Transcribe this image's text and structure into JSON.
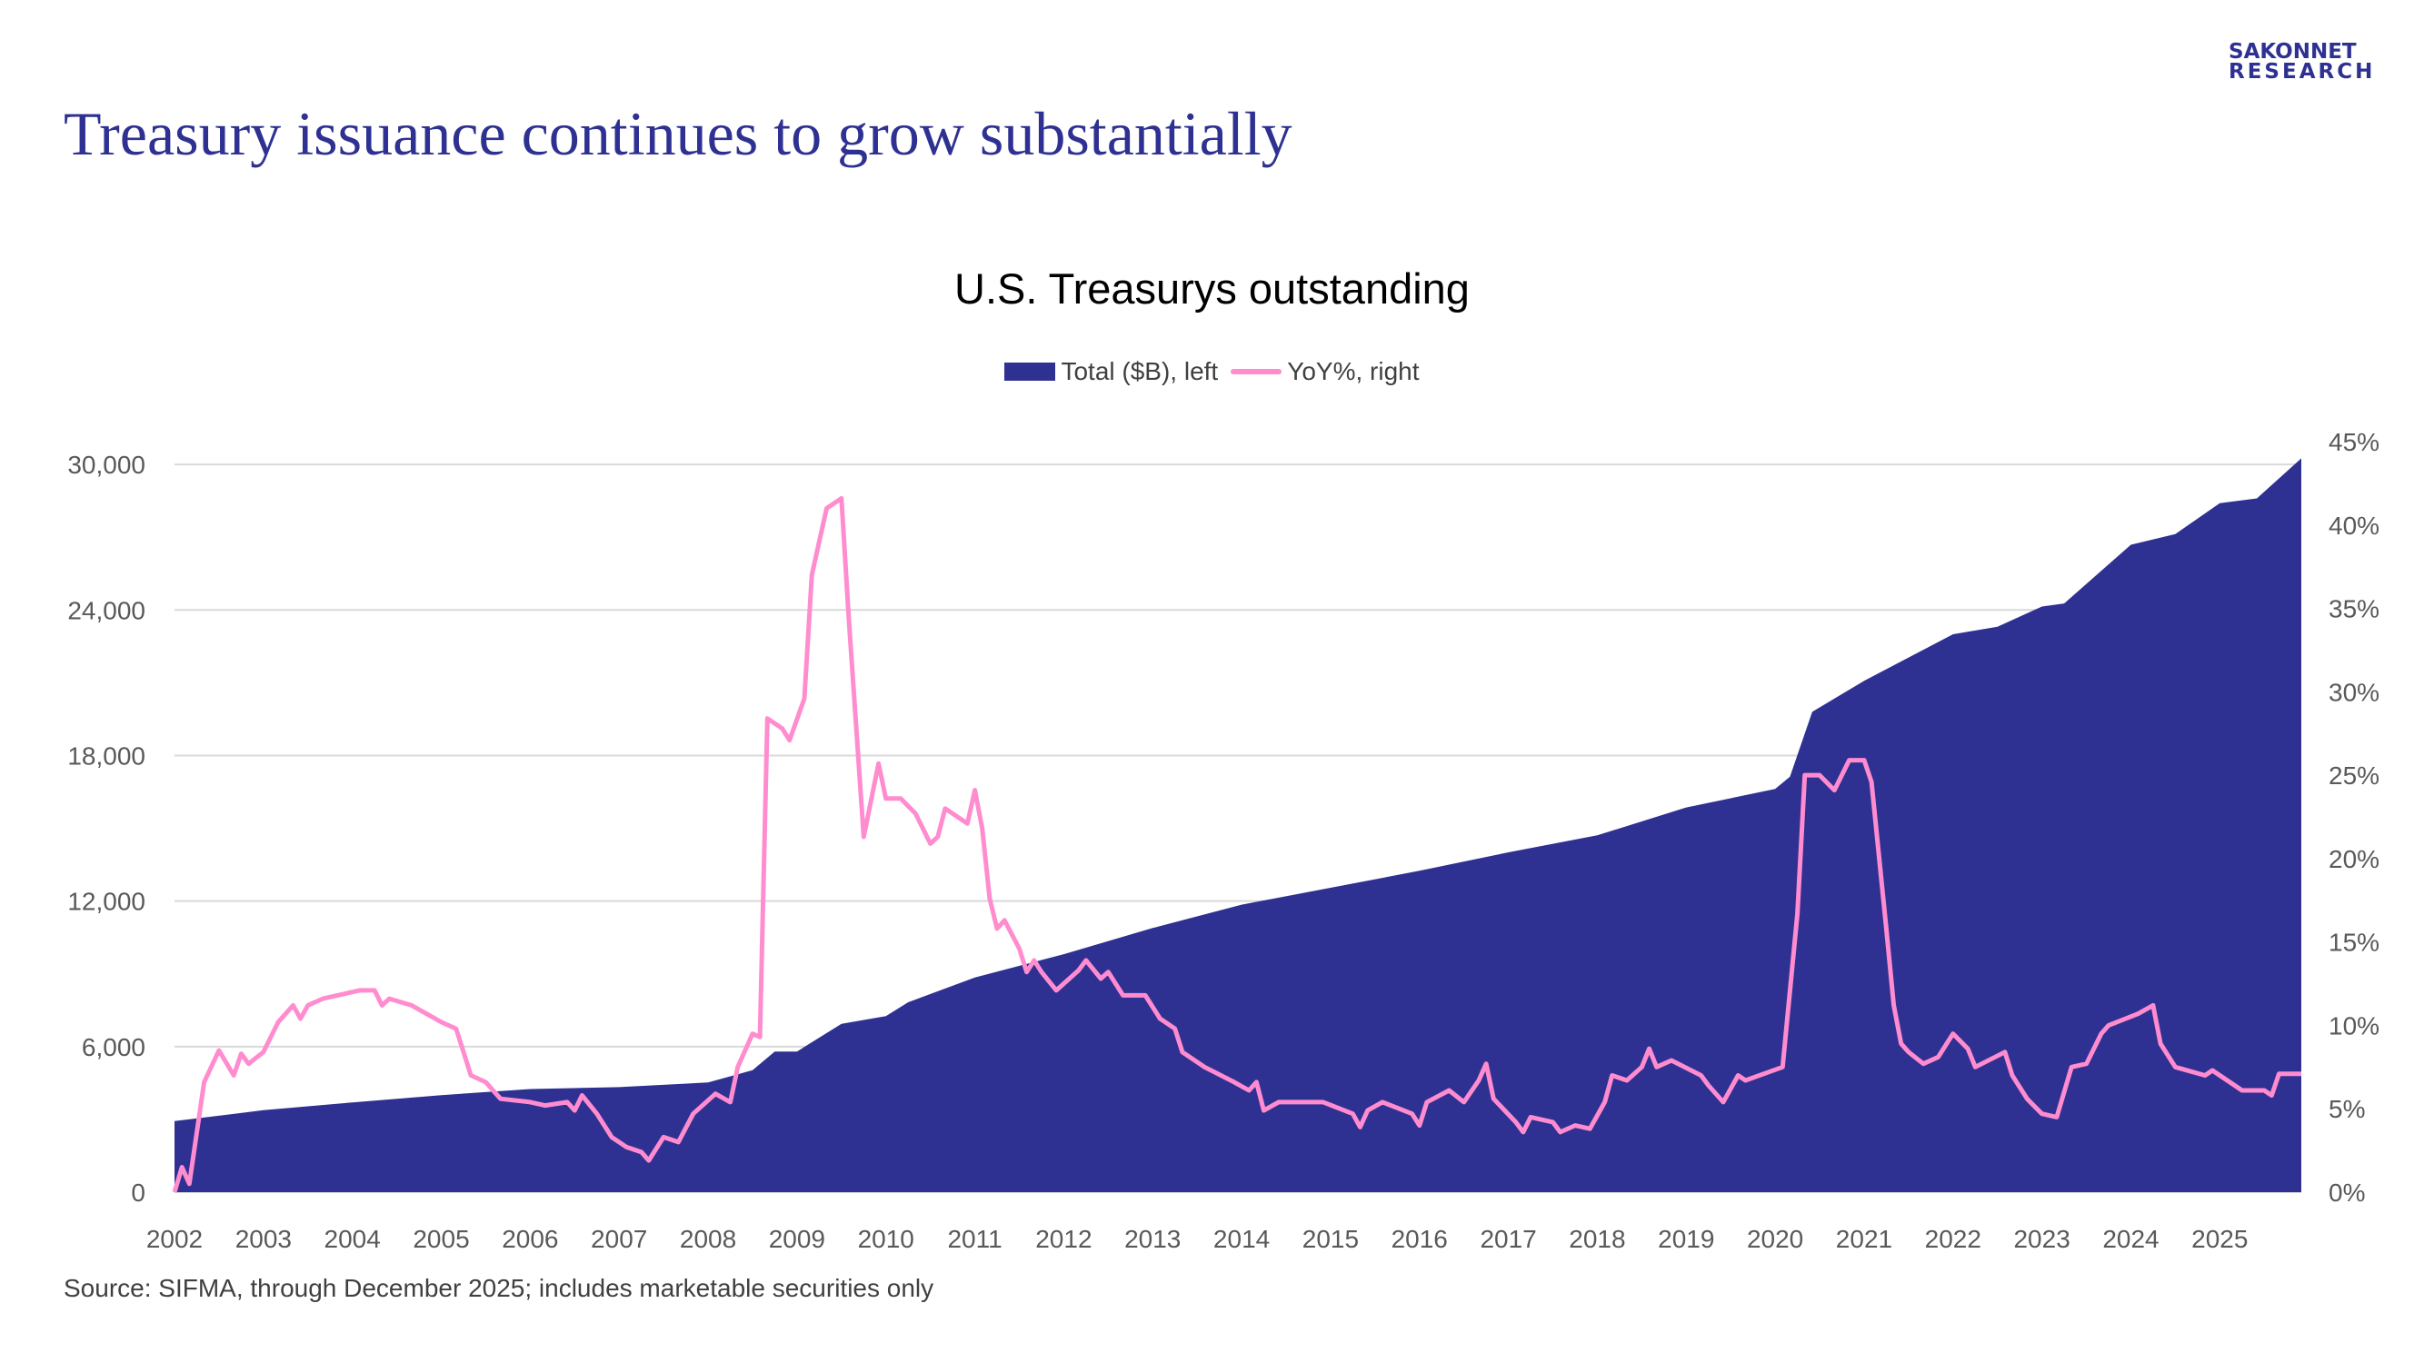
{
  "header": {
    "title": "Treasury issuance continues to grow substantially",
    "logo_line1": "SAKONNET",
    "logo_line2": "RESEARCH"
  },
  "footer": {
    "source": "Source: SIFMA, through December 2025; includes marketable securities only"
  },
  "colors": {
    "brand": "#2e3192",
    "area": "#2e3192",
    "line": "#ff8ccf",
    "grid": "#d9d9d9",
    "tick_text": "#595959"
  },
  "chart_data": {
    "type": "area+line",
    "title": "U.S. Treasurys outstanding",
    "legend": {
      "placement": "top",
      "entries": [
        "Total ($B), left",
        "YoY%, right"
      ]
    },
    "grid": true,
    "x_tick_labels": [
      "2002",
      "2003",
      "2004",
      "2005",
      "2006",
      "2007",
      "2008",
      "2009",
      "2010",
      "2011",
      "2012",
      "2013",
      "2014",
      "2015",
      "2016",
      "2017",
      "2018",
      "2019",
      "2020",
      "2021",
      "2022",
      "2023",
      "2024",
      "2025"
    ],
    "x_range": [
      "2002-01",
      "2025-12"
    ],
    "left_axis": {
      "ylim": [
        0,
        30940
      ],
      "ticks": [
        0,
        6000,
        12000,
        18000,
        24000,
        30000
      ],
      "tick_labels": [
        "0",
        "6,000",
        "12,000",
        "18,000",
        "24,000",
        "30,000"
      ]
    },
    "right_axis": {
      "ylim": [
        0,
        45
      ],
      "ticks": [
        0,
        5,
        10,
        15,
        20,
        25,
        30,
        35,
        40,
        45
      ],
      "tick_labels": [
        "0%",
        "5%",
        "10%",
        "15%",
        "20%",
        "25%",
        "30%",
        "35%",
        "40%",
        "45%"
      ]
    },
    "series": [
      {
        "name": "Total ($B), left",
        "type": "area",
        "axis": "left",
        "points": [
          [
            "2002-01",
            2930
          ],
          [
            "2003-01",
            3380
          ],
          [
            "2004-01",
            3700
          ],
          [
            "2005-01",
            4000
          ],
          [
            "2006-01",
            4250
          ],
          [
            "2007-01",
            4330
          ],
          [
            "2008-01",
            4520
          ],
          [
            "2008-07",
            5030
          ],
          [
            "2008-10",
            5800
          ],
          [
            "2009-01",
            5800
          ],
          [
            "2009-07",
            6940
          ],
          [
            "2010-01",
            7260
          ],
          [
            "2010-04",
            7830
          ],
          [
            "2011-01",
            8850
          ],
          [
            "2012-01",
            9810
          ],
          [
            "2013-01",
            10890
          ],
          [
            "2014-01",
            11850
          ],
          [
            "2015-01",
            12550
          ],
          [
            "2016-01",
            13250
          ],
          [
            "2017-01",
            14010
          ],
          [
            "2018-01",
            14710
          ],
          [
            "2019-01",
            15860
          ],
          [
            "2020-01",
            16620
          ],
          [
            "2020-03",
            17130
          ],
          [
            "2020-06",
            19800
          ],
          [
            "2021-01",
            21080
          ],
          [
            "2022-01",
            23000
          ],
          [
            "2022-07",
            23310
          ],
          [
            "2023-01",
            24140
          ],
          [
            "2023-04",
            24270
          ],
          [
            "2024-01",
            26690
          ],
          [
            "2024-07",
            27130
          ],
          [
            "2025-01",
            28400
          ],
          [
            "2025-06",
            28600
          ],
          [
            "2025-12",
            30250
          ]
        ]
      },
      {
        "name": "YoY%, right",
        "type": "line",
        "axis": "right",
        "points": [
          [
            "2002-01",
            0
          ],
          [
            "2002-02",
            1.5
          ],
          [
            "2002-03",
            0.5
          ],
          [
            "2002-05",
            6.6
          ],
          [
            "2002-07",
            8.5
          ],
          [
            "2002-09",
            7.0
          ],
          [
            "2002-10",
            8.3
          ],
          [
            "2002-11",
            7.7
          ],
          [
            "2003-01",
            8.4
          ],
          [
            "2003-03",
            10.2
          ],
          [
            "2003-05",
            11.2
          ],
          [
            "2003-06",
            10.4
          ],
          [
            "2003-07",
            11.2
          ],
          [
            "2003-09",
            11.6
          ],
          [
            "2003-11",
            11.8
          ],
          [
            "2004-02",
            12.1
          ],
          [
            "2004-04",
            12.1
          ],
          [
            "2004-05",
            11.2
          ],
          [
            "2004-06",
            11.6
          ],
          [
            "2004-09",
            11.2
          ],
          [
            "2005-01",
            10.2
          ],
          [
            "2005-03",
            9.8
          ],
          [
            "2005-04",
            8.4
          ],
          [
            "2005-05",
            7.0
          ],
          [
            "2005-07",
            6.6
          ],
          [
            "2005-09",
            5.6
          ],
          [
            "2006-01",
            5.4
          ],
          [
            "2006-03",
            5.2
          ],
          [
            "2006-06",
            5.4
          ],
          [
            "2006-07",
            4.9
          ],
          [
            "2006-08",
            5.8
          ],
          [
            "2006-10",
            4.7
          ],
          [
            "2006-12",
            3.3
          ],
          [
            "2007-02",
            2.7
          ],
          [
            "2007-04",
            2.4
          ],
          [
            "2007-05",
            1.9
          ],
          [
            "2007-07",
            3.3
          ],
          [
            "2007-09",
            3.0
          ],
          [
            "2007-11",
            4.7
          ],
          [
            "2008-02",
            5.9
          ],
          [
            "2008-04",
            5.4
          ],
          [
            "2008-05",
            7.5
          ],
          [
            "2008-07",
            9.5
          ],
          [
            "2008-08",
            9.3
          ],
          [
            "2008-09",
            28.4
          ],
          [
            "2008-11",
            27.8
          ],
          [
            "2008-12",
            27.1
          ],
          [
            "2009-02",
            29.6
          ],
          [
            "2009-03",
            37.0
          ],
          [
            "2009-05",
            41.0
          ],
          [
            "2009-07",
            41.6
          ],
          [
            "2009-08",
            34.3
          ],
          [
            "2009-10",
            21.3
          ],
          [
            "2009-12",
            25.7
          ],
          [
            "2010-01",
            23.6
          ],
          [
            "2010-03",
            23.6
          ],
          [
            "2010-05",
            22.7
          ],
          [
            "2010-07",
            20.9
          ],
          [
            "2010-08",
            21.3
          ],
          [
            "2010-09",
            23.0
          ],
          [
            "2010-12",
            22.1
          ],
          [
            "2011-01",
            24.1
          ],
          [
            "2011-02",
            21.8
          ],
          [
            "2011-03",
            17.6
          ],
          [
            "2011-04",
            15.8
          ],
          [
            "2011-05",
            16.3
          ],
          [
            "2011-07",
            14.6
          ],
          [
            "2011-08",
            13.2
          ],
          [
            "2011-09",
            13.9
          ],
          [
            "2011-10",
            13.2
          ],
          [
            "2011-12",
            12.1
          ],
          [
            "2012-03",
            13.3
          ],
          [
            "2012-04",
            13.9
          ],
          [
            "2012-06",
            12.8
          ],
          [
            "2012-07",
            13.2
          ],
          [
            "2012-09",
            11.8
          ],
          [
            "2012-12",
            11.8
          ],
          [
            "2013-02",
            10.4
          ],
          [
            "2013-04",
            9.8
          ],
          [
            "2013-05",
            8.4
          ],
          [
            "2013-08",
            7.5
          ],
          [
            "2013-12",
            6.6
          ],
          [
            "2014-02",
            6.1
          ],
          [
            "2014-03",
            6.6
          ],
          [
            "2014-04",
            4.9
          ],
          [
            "2014-06",
            5.4
          ],
          [
            "2014-12",
            5.4
          ],
          [
            "2015-04",
            4.7
          ],
          [
            "2015-05",
            3.9
          ],
          [
            "2015-06",
            4.9
          ],
          [
            "2015-08",
            5.4
          ],
          [
            "2015-12",
            4.7
          ],
          [
            "2016-01",
            4.0
          ],
          [
            "2016-02",
            5.4
          ],
          [
            "2016-05",
            6.1
          ],
          [
            "2016-07",
            5.4
          ],
          [
            "2016-09",
            6.7
          ],
          [
            "2016-10",
            7.7
          ],
          [
            "2016-11",
            5.6
          ],
          [
            "2017-02",
            4.2
          ],
          [
            "2017-03",
            3.6
          ],
          [
            "2017-04",
            4.5
          ],
          [
            "2017-07",
            4.2
          ],
          [
            "2017-08",
            3.6
          ],
          [
            "2017-10",
            4.0
          ],
          [
            "2017-12",
            3.8
          ],
          [
            "2018-02",
            5.4
          ],
          [
            "2018-03",
            7.0
          ],
          [
            "2018-05",
            6.7
          ],
          [
            "2018-07",
            7.5
          ],
          [
            "2018-08",
            8.6
          ],
          [
            "2018-09",
            7.5
          ],
          [
            "2018-11",
            7.9
          ],
          [
            "2019-03",
            7.0
          ],
          [
            "2019-04",
            6.4
          ],
          [
            "2019-06",
            5.4
          ],
          [
            "2019-08",
            7.0
          ],
          [
            "2019-09",
            6.7
          ],
          [
            "2020-02",
            7.5
          ],
          [
            "2020-04",
            16.7
          ],
          [
            "2020-05",
            25.0
          ],
          [
            "2020-07",
            25.0
          ],
          [
            "2020-09",
            24.1
          ],
          [
            "2020-11",
            25.9
          ],
          [
            "2021-01",
            25.9
          ],
          [
            "2021-02",
            24.6
          ],
          [
            "2021-04",
            15.8
          ],
          [
            "2021-05",
            11.2
          ],
          [
            "2021-06",
            8.9
          ],
          [
            "2021-07",
            8.4
          ],
          [
            "2021-09",
            7.7
          ],
          [
            "2021-11",
            8.1
          ],
          [
            "2022-01",
            9.5
          ],
          [
            "2022-03",
            8.6
          ],
          [
            "2022-04",
            7.5
          ],
          [
            "2022-08",
            8.4
          ],
          [
            "2022-09",
            7.0
          ],
          [
            "2022-11",
            5.6
          ],
          [
            "2023-01",
            4.7
          ],
          [
            "2023-03",
            4.5
          ],
          [
            "2023-05",
            7.5
          ],
          [
            "2023-07",
            7.7
          ],
          [
            "2023-09",
            9.5
          ],
          [
            "2023-10",
            10.0
          ],
          [
            "2024-02",
            10.7
          ],
          [
            "2024-04",
            11.2
          ],
          [
            "2024-05",
            8.9
          ],
          [
            "2024-07",
            7.5
          ],
          [
            "2024-11",
            7.0
          ],
          [
            "2024-12",
            7.3
          ],
          [
            "2025-04",
            6.1
          ],
          [
            "2025-07",
            6.1
          ],
          [
            "2025-08",
            5.8
          ],
          [
            "2025-09",
            7.1
          ],
          [
            "2025-12",
            7.1
          ]
        ]
      }
    ]
  }
}
